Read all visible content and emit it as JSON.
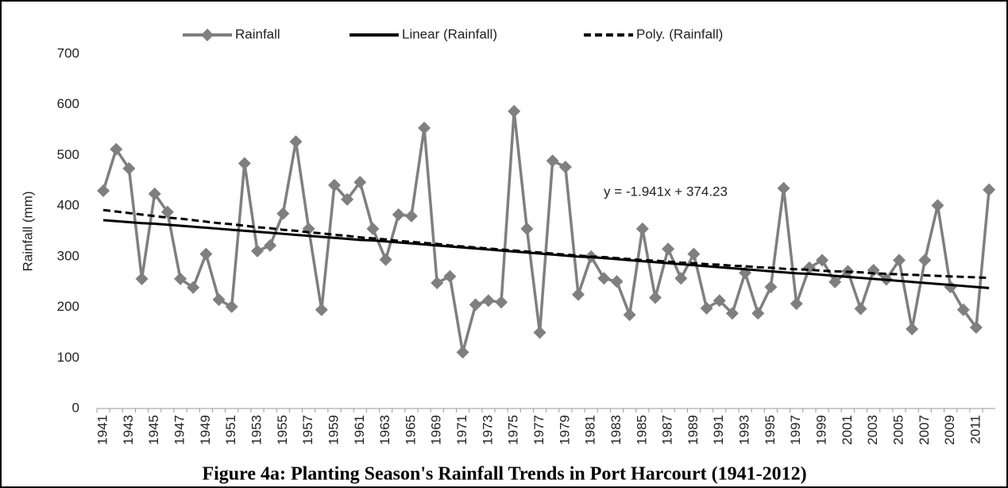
{
  "chart_data": {
    "type": "line",
    "title": "Figure 4a: Planting Season's Rainfall Trends in Port Harcourt (1941-2012)",
    "y_label": "Rainfall (mm)",
    "annotation": "y = -1.941x + 374.23",
    "categories": [
      "1941",
      null,
      "1943",
      null,
      "1945",
      null,
      "1947",
      null,
      "1949",
      null,
      "1951",
      null,
      "1953",
      null,
      "1955",
      null,
      "1957",
      null,
      "1959",
      null,
      "1961",
      null,
      "1963",
      null,
      "1965",
      null,
      "1969",
      null,
      "1971",
      null,
      "1973",
      null,
      "1975",
      null,
      "1977",
      null,
      "1979",
      null,
      "1981",
      null,
      "1983",
      null,
      "1985",
      null,
      "1987",
      null,
      "1989",
      null,
      "1991",
      null,
      "1993",
      null,
      "1995",
      null,
      "1997",
      null,
      "1999",
      null,
      "2001",
      null,
      "2003",
      null,
      "2005",
      null,
      "2007",
      null,
      "2009",
      null,
      "2011",
      null
    ],
    "series": [
      {
        "name": "Rainfall",
        "color": "#7f7f7f",
        "marker": "diamond",
        "dash": false,
        "values": [
          430,
          512,
          474,
          256,
          424,
          388,
          256,
          239,
          305,
          215,
          201,
          484,
          311,
          322,
          385,
          527,
          355,
          195,
          441,
          413,
          447,
          355,
          294,
          383,
          380,
          554,
          248,
          261,
          111,
          205,
          213,
          210,
          587,
          355,
          150,
          489,
          477,
          225,
          300,
          257,
          251,
          185,
          355,
          219,
          315,
          257,
          305,
          198,
          213,
          188,
          268,
          188,
          240,
          435,
          207,
          278,
          293,
          250,
          271,
          197,
          273,
          255,
          293,
          157,
          293,
          401,
          240,
          195,
          160,
          432
        ]
      },
      {
        "name": "Linear (Rainfall)",
        "color": "#000000",
        "marker": null,
        "dash": false,
        "values": [
          372,
          370,
          368,
          366,
          365,
          363,
          361,
          359,
          357,
          355,
          353,
          351,
          349,
          347,
          345,
          343,
          341,
          339,
          337,
          335,
          333,
          332,
          330,
          328,
          326,
          324,
          322,
          320,
          318,
          316,
          314,
          312,
          310,
          308,
          306,
          304,
          302,
          300,
          299,
          297,
          295,
          293,
          291,
          289,
          287,
          285,
          283,
          281,
          279,
          277,
          275,
          273,
          271,
          269,
          267,
          266,
          264,
          262,
          260,
          258,
          256,
          254,
          252,
          250,
          248,
          246,
          244,
          242,
          240,
          238
        ]
      },
      {
        "name": "Poly. (Rainfall)",
        "color": "#000000",
        "marker": null,
        "dash": true,
        "values": [
          392,
          389,
          386,
          383,
          380,
          377,
          375,
          372,
          369,
          366,
          364,
          361,
          358,
          356,
          353,
          351,
          348,
          346,
          343,
          341,
          338,
          336,
          334,
          331,
          329,
          327,
          325,
          322,
          320,
          318,
          316,
          314,
          312,
          310,
          308,
          306,
          304,
          302,
          300,
          299,
          297,
          295,
          293,
          292,
          290,
          288,
          287,
          285,
          284,
          282,
          281,
          279,
          278,
          276,
          275,
          274,
          272,
          271,
          270,
          269,
          267,
          266,
          265,
          264,
          263,
          262,
          261,
          260,
          259,
          258
        ]
      }
    ],
    "ylim": [
      0,
      700
    ],
    "yticks": [
      0,
      100,
      200,
      300,
      400,
      500,
      600,
      700
    ],
    "grid": false,
    "legend": "top"
  }
}
